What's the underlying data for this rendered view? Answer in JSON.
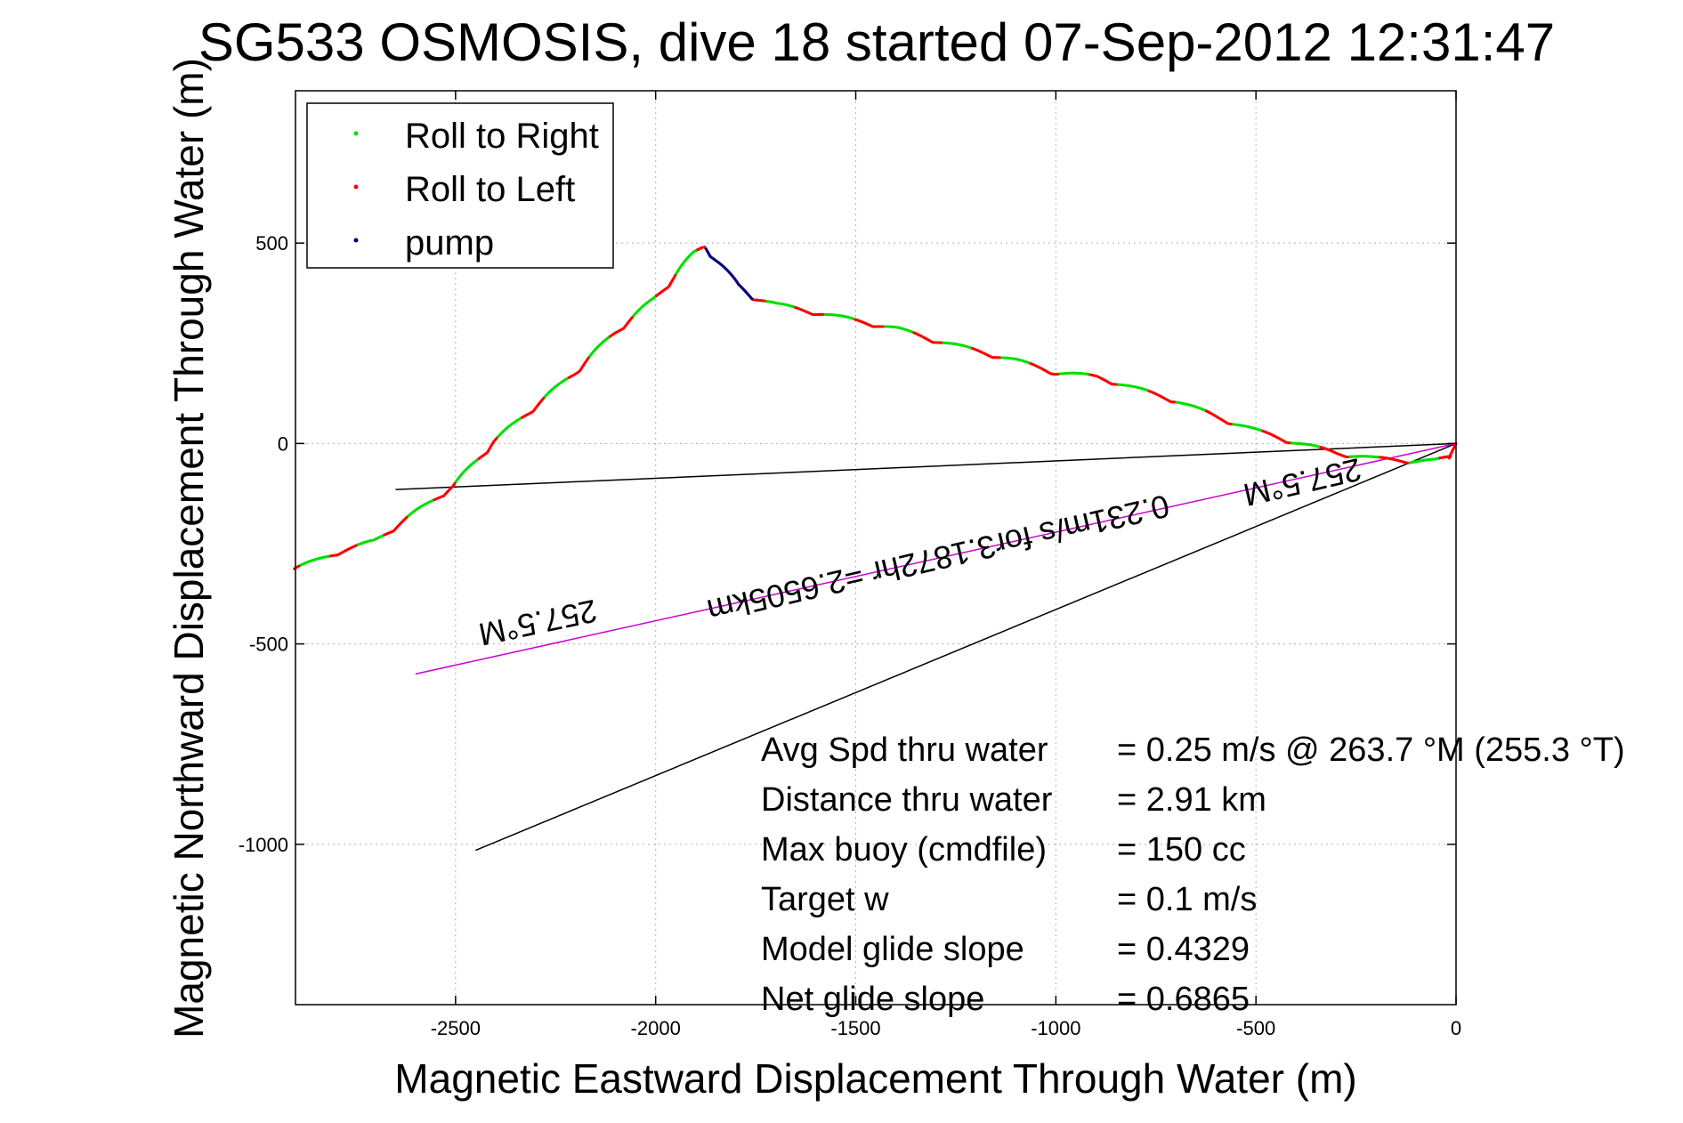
{
  "chart_data": {
    "type": "line",
    "title": "SG533 OSMOSIS, dive 18 started 07-Sep-2012 12:31:47",
    "xlabel": "Magnetic Eastward Displacement Through Water (m)",
    "ylabel": "Magnetic Northward Displacement Through Water (m)",
    "xlim": [
      -2900,
      0
    ],
    "ylim": [
      -1400,
      880
    ],
    "xticks": [
      -2500,
      -2000,
      -1500,
      -1000,
      -500,
      0
    ],
    "yticks": [
      500,
      0,
      -500,
      -1000
    ],
    "xtick_labels": [
      "-2500",
      "-2000",
      "-1500",
      "-1000",
      "-500",
      "0"
    ],
    "ytick_labels": [
      "500",
      "0",
      "-500",
      "-1000"
    ],
    "grid": true,
    "legend_position": "top-left",
    "legend": [
      {
        "label": "Roll to Right",
        "color": "#00e000"
      },
      {
        "label": "Roll to Left",
        "color": "#ff0000"
      },
      {
        "label": "pump",
        "color": "#000080"
      }
    ],
    "track": {
      "x": [
        0,
        -10,
        -50,
        -100,
        -200,
        -300,
        -400,
        -500,
        -600,
        -700,
        -800,
        -900,
        -1000,
        -1100,
        -1200,
        -1300,
        -1400,
        -1500,
        -1600,
        -1700,
        -1760,
        -1800,
        -1840,
        -1880,
        -1900,
        -1950,
        -2000,
        -2100,
        -2200,
        -2300,
        -2400,
        -2500,
        -2600,
        -2700,
        -2800,
        -2900
      ],
      "y": [
        0,
        -40,
        -50,
        -50,
        -45,
        -30,
        -5,
        25,
        60,
        100,
        130,
        160,
        170,
        200,
        225,
        250,
        280,
        300,
        320,
        340,
        360,
        390,
        440,
        485,
        470,
        410,
        355,
        270,
        170,
        85,
        0,
        -110,
        -180,
        -250,
        -280,
        -320
      ]
    },
    "lines": [
      {
        "name": "current-line-1",
        "color": "#000000",
        "x": [
          0,
          -2650
        ],
        "y": [
          0,
          -115
        ]
      },
      {
        "name": "current-line-2",
        "color": "#000000",
        "x": [
          0,
          -2450
        ],
        "y": [
          0,
          -1015
        ]
      },
      {
        "name": "current-line-3",
        "color": "#cc00cc",
        "x": [
          0,
          -2600
        ],
        "y": [
          0,
          -575
        ]
      }
    ],
    "annotations": [
      {
        "text": "257.5°M",
        "x": -2300,
        "y": -420,
        "rotation": 168
      },
      {
        "text": "0.231m/s for3.1872hr =2.6505km",
        "x": -1300,
        "y": -260,
        "rotation": 167
      },
      {
        "text": "257.5°M",
        "x": -390,
        "y": -70,
        "rotation": 167
      }
    ]
  },
  "stats": [
    {
      "label": "Avg Spd thru water",
      "value": "=  0.25 m/s @ 263.7 °M (255.3 °T)"
    },
    {
      "label": "Distance thru water",
      "value": "=  2.91 km"
    },
    {
      "label": "Max buoy (cmdfile)",
      "value": "= 150 cc"
    },
    {
      "label": "Target w",
      "value": "= 0.1 m/s"
    },
    {
      "label": "Model glide slope",
      "value": "= 0.4329"
    },
    {
      "label": "Net glide slope",
      "value": "= 0.6865"
    }
  ]
}
